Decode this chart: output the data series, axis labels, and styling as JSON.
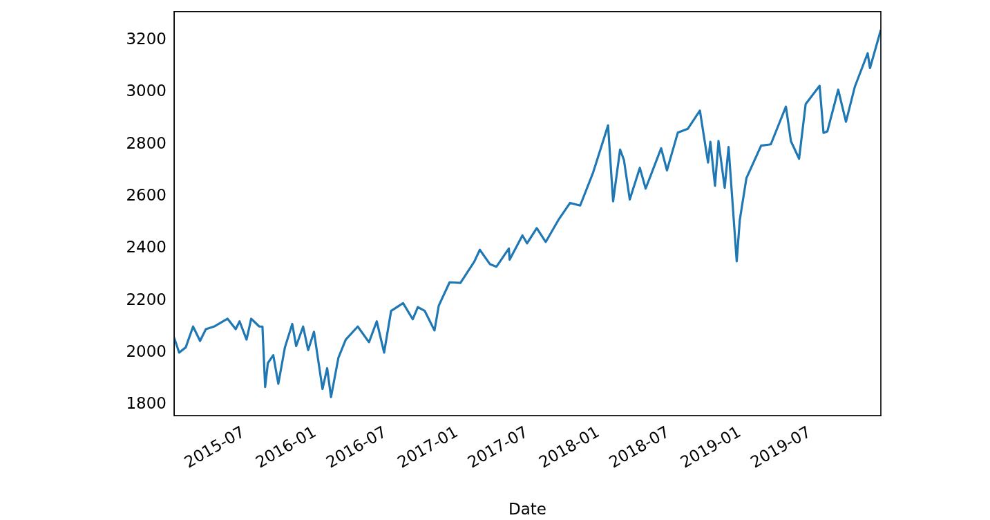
{
  "chart_data": {
    "type": "line",
    "xlabel": "Date",
    "x": [
      "2015-01-02",
      "2015-01-15",
      "2015-02-01",
      "2015-02-20",
      "2015-03-10",
      "2015-03-25",
      "2015-04-15",
      "2015-05-20",
      "2015-06-10",
      "2015-06-20",
      "2015-07-08",
      "2015-07-20",
      "2015-08-10",
      "2015-08-18",
      "2015-08-25",
      "2015-09-01",
      "2015-09-15",
      "2015-09-28",
      "2015-10-15",
      "2015-11-03",
      "2015-11-13",
      "2015-12-01",
      "2015-12-14",
      "2015-12-29",
      "2016-01-20",
      "2016-02-01",
      "2016-02-11",
      "2016-03-01",
      "2016-03-20",
      "2016-04-20",
      "2016-05-19",
      "2016-06-08",
      "2016-06-27",
      "2016-07-15",
      "2016-08-15",
      "2016-09-09",
      "2016-09-22",
      "2016-10-10",
      "2016-11-04",
      "2016-11-15",
      "2016-12-13",
      "2017-01-10",
      "2017-02-15",
      "2017-03-01",
      "2017-03-27",
      "2017-04-13",
      "2017-05-15",
      "2017-05-17",
      "2017-06-19",
      "2017-07-01",
      "2017-07-26",
      "2017-08-18",
      "2017-09-20",
      "2017-10-20",
      "2017-11-15",
      "2017-12-18",
      "2018-01-26",
      "2018-02-08",
      "2018-02-26",
      "2018-03-08",
      "2018-03-23",
      "2018-04-18",
      "2018-05-03",
      "2018-06-12",
      "2018-06-27",
      "2018-07-25",
      "2018-08-20",
      "2018-09-20",
      "2018-10-11",
      "2018-10-17",
      "2018-10-29",
      "2018-11-07",
      "2018-11-23",
      "2018-12-03",
      "2018-12-24",
      "2019-01-01",
      "2019-01-18",
      "2019-02-25",
      "2019-03-22",
      "2019-04-30",
      "2019-05-13",
      "2019-06-03",
      "2019-06-20",
      "2019-07-26",
      "2019-08-05",
      "2019-08-15",
      "2019-09-12",
      "2019-10-02",
      "2019-10-25",
      "2019-11-27",
      "2019-12-03",
      "2019-12-31"
    ],
    "series": [
      {
        "color": "#1f77b4",
        "values": [
          2058,
          2000,
          2020,
          2100,
          2045,
          2090,
          2100,
          2130,
          2090,
          2120,
          2050,
          2130,
          2100,
          2100,
          1868,
          1960,
          1990,
          1880,
          2020,
          2110,
          2025,
          2100,
          2010,
          2080,
          1860,
          1940,
          1829,
          1980,
          2050,
          2100,
          2040,
          2120,
          2000,
          2160,
          2190,
          2128,
          2175,
          2160,
          2085,
          2180,
          2270,
          2268,
          2350,
          2395,
          2340,
          2330,
          2400,
          2357,
          2450,
          2420,
          2478,
          2425,
          2510,
          2575,
          2565,
          2690,
          2873,
          2581,
          2780,
          2740,
          2588,
          2710,
          2630,
          2785,
          2700,
          2845,
          2860,
          2930,
          2730,
          2810,
          2641,
          2813,
          2633,
          2790,
          2351,
          2510,
          2670,
          2795,
          2800,
          2945,
          2812,
          2745,
          2955,
          3025,
          2844,
          2850,
          3010,
          2887,
          3022,
          3150,
          3093,
          3240
        ]
      }
    ],
    "xlim": [
      "2015-01-02",
      "2019-12-31"
    ],
    "xticks": [
      "2015-07",
      "2016-01",
      "2016-07",
      "2017-01",
      "2017-07",
      "2018-01",
      "2018-07",
      "2019-01",
      "2019-07"
    ],
    "ylim": [
      1758,
      3310
    ],
    "yticks": [
      1800,
      2000,
      2200,
      2400,
      2600,
      2800,
      3000,
      3200
    ],
    "grid": false,
    "legend": false
  }
}
